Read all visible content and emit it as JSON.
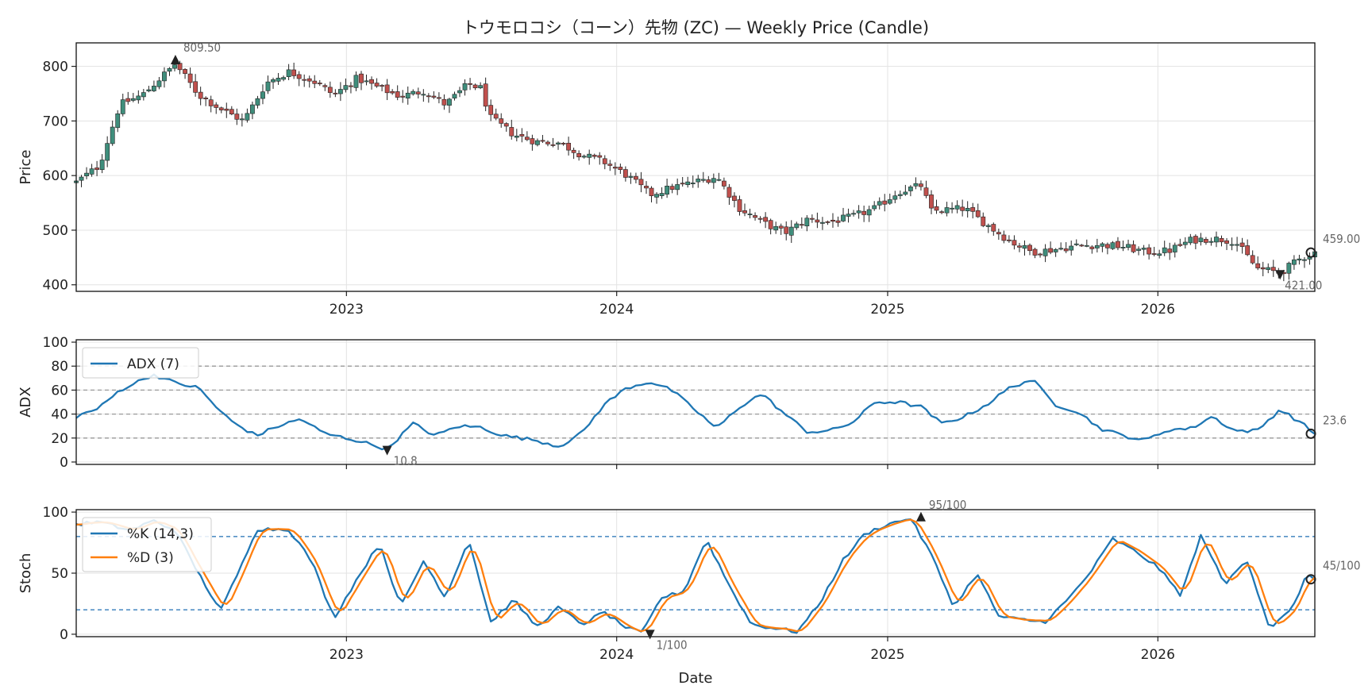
{
  "chart_data": {
    "title": "トウモロコシ（コーン）先物 (ZC) — Weekly Price (Candle)",
    "xlabel": "Date",
    "x_ticks": [
      "2023",
      "2024",
      "2025",
      "2026"
    ],
    "colors": {
      "up": "#3f8e7c",
      "down": "#c0504d",
      "wick": "#222222",
      "adx": "#1f77b4",
      "k": "#1f77b4",
      "d": "#ff7f0e",
      "ref": "#999999",
      "stoch_ref": "#1f6fb4",
      "grid": "#e3e3e3"
    },
    "panels": [
      {
        "id": "price",
        "type": "candlestick",
        "ylabel": "Price",
        "ylim": [
          388,
          843
        ],
        "yticks": [
          400,
          500,
          600,
          700,
          800
        ],
        "annotations": [
          {
            "label": "809.50",
            "x": "2022-05",
            "y": 809.5,
            "marker": "up"
          },
          {
            "label": "421.00",
            "x": "2026-06",
            "y": 421,
            "marker": "down"
          },
          {
            "label": "459.00",
            "x": "2026-08",
            "y": 459,
            "marker": "last"
          }
        ],
        "close_anchors": [
          [
            "2022-01-01",
            588
          ],
          [
            "2022-02-01",
            618
          ],
          [
            "2022-03-01",
            730
          ],
          [
            "2022-04-01",
            748
          ],
          [
            "2022-05-15",
            805
          ],
          [
            "2022-06-15",
            748
          ],
          [
            "2022-07-15",
            722
          ],
          [
            "2022-08-15",
            700
          ],
          [
            "2022-09-15",
            770
          ],
          [
            "2022-10-15",
            790
          ],
          [
            "2022-11-15",
            775
          ],
          [
            "2022-12-15",
            748
          ],
          [
            "2023-01-15",
            778
          ],
          [
            "2023-02-15",
            760
          ],
          [
            "2023-03-15",
            745
          ],
          [
            "2023-04-15",
            755
          ],
          [
            "2023-05-15",
            730
          ],
          [
            "2023-06-15",
            768
          ],
          [
            "2023-07-01",
            760
          ],
          [
            "2023-07-15",
            705
          ],
          [
            "2023-08-15",
            675
          ],
          [
            "2023-09-15",
            662
          ],
          [
            "2023-10-15",
            660
          ],
          [
            "2023-11-15",
            638
          ],
          [
            "2023-12-15",
            625
          ],
          [
            "2024-01-15",
            600
          ],
          [
            "2024-02-15",
            565
          ],
          [
            "2024-03-15",
            578
          ],
          [
            "2024-04-15",
            588
          ],
          [
            "2024-05-15",
            598
          ],
          [
            "2024-06-15",
            540
          ],
          [
            "2024-07-15",
            515
          ],
          [
            "2024-08-15",
            495
          ],
          [
            "2024-09-15",
            520
          ],
          [
            "2024-10-15",
            515
          ],
          [
            "2024-11-15",
            525
          ],
          [
            "2024-12-15",
            540
          ],
          [
            "2025-01-15",
            570
          ],
          [
            "2025-02-15",
            582
          ],
          [
            "2025-03-01",
            535
          ],
          [
            "2025-04-15",
            540
          ],
          [
            "2025-05-15",
            510
          ],
          [
            "2025-06-15",
            480
          ],
          [
            "2025-07-15",
            460
          ],
          [
            "2025-08-15",
            465
          ],
          [
            "2025-09-15",
            472
          ],
          [
            "2025-10-15",
            473
          ],
          [
            "2025-11-15",
            470
          ],
          [
            "2025-12-15",
            460
          ],
          [
            "2026-01-15",
            462
          ],
          [
            "2026-02-15",
            482
          ],
          [
            "2026-03-15",
            485
          ],
          [
            "2026-04-15",
            480
          ],
          [
            "2026-05-15",
            430
          ],
          [
            "2026-06-15",
            422
          ],
          [
            "2026-07-15",
            450
          ],
          [
            "2026-08-01",
            459
          ]
        ]
      },
      {
        "id": "adx",
        "type": "line",
        "ylabel": "ADX",
        "ylim": [
          -2,
          102
        ],
        "yticks": [
          0,
          20,
          40,
          60,
          80,
          100
        ],
        "ref_lines": [
          20,
          40,
          60,
          80
        ],
        "series": [
          {
            "name": "ADX (7)",
            "color": "#1f77b4"
          }
        ],
        "annotations": [
          {
            "label": "10.8",
            "x": "2023-02-25",
            "y": 10.8,
            "marker": "down"
          },
          {
            "label": "23.6",
            "x": "2026-08",
            "y": 23.6,
            "marker": "last"
          }
        ],
        "anchors": [
          [
            "2022-01-01",
            38
          ],
          [
            "2022-02-01",
            45
          ],
          [
            "2022-03-01",
            60
          ],
          [
            "2022-04-15",
            73
          ],
          [
            "2022-05-15",
            66
          ],
          [
            "2022-06-15",
            62
          ],
          [
            "2022-07-15",
            42
          ],
          [
            "2022-08-01",
            33
          ],
          [
            "2022-09-01",
            22
          ],
          [
            "2022-10-01",
            30
          ],
          [
            "2022-11-01",
            36
          ],
          [
            "2022-12-01",
            24
          ],
          [
            "2023-01-15",
            18
          ],
          [
            "2023-02-25",
            10.8
          ],
          [
            "2023-04-01",
            32
          ],
          [
            "2023-05-01",
            22
          ],
          [
            "2023-06-01",
            30
          ],
          [
            "2023-07-01",
            29
          ],
          [
            "2023-08-01",
            22
          ],
          [
            "2023-09-15",
            18
          ],
          [
            "2023-10-15",
            13
          ],
          [
            "2023-11-15",
            24
          ],
          [
            "2023-12-15",
            48
          ],
          [
            "2024-01-15",
            62
          ],
          [
            "2024-02-15",
            67
          ],
          [
            "2024-03-15",
            60
          ],
          [
            "2024-04-15",
            44
          ],
          [
            "2024-05-15",
            28
          ],
          [
            "2024-06-15",
            46
          ],
          [
            "2024-07-15",
            57
          ],
          [
            "2024-08-15",
            40
          ],
          [
            "2024-09-15",
            25
          ],
          [
            "2024-10-15",
            26
          ],
          [
            "2024-11-15",
            33
          ],
          [
            "2024-12-15",
            50
          ],
          [
            "2025-01-15",
            50
          ],
          [
            "2025-02-15",
            46
          ],
          [
            "2025-03-15",
            32
          ],
          [
            "2025-04-15",
            38
          ],
          [
            "2025-05-15",
            48
          ],
          [
            "2025-06-15",
            62
          ],
          [
            "2025-07-15",
            69
          ],
          [
            "2025-08-15",
            48
          ],
          [
            "2025-09-15",
            42
          ],
          [
            "2025-10-15",
            28
          ],
          [
            "2025-11-15",
            22
          ],
          [
            "2025-12-15",
            18
          ],
          [
            "2026-01-15",
            27
          ],
          [
            "2026-02-15",
            28
          ],
          [
            "2026-03-15",
            38
          ],
          [
            "2026-04-15",
            26
          ],
          [
            "2026-05-15",
            26
          ],
          [
            "2026-06-15",
            44
          ],
          [
            "2026-07-15",
            32
          ],
          [
            "2026-08-01",
            23.6
          ]
        ]
      },
      {
        "id": "stoch",
        "type": "line",
        "ylabel": "Stoch",
        "ylim": [
          -2,
          102
        ],
        "yticks": [
          0,
          50,
          100
        ],
        "ref_lines": [
          20,
          80
        ],
        "series": [
          {
            "name": "%K (14,3)",
            "color": "#1f77b4"
          },
          {
            "name": "%D (3)",
            "color": "#ff7f0e"
          }
        ],
        "annotations": [
          {
            "label": "95/100",
            "x": "2025-02",
            "y": 95,
            "marker": "up"
          },
          {
            "label": "1/100",
            "x": "2024-02",
            "y": 1,
            "marker": "down"
          },
          {
            "label": "45/100",
            "x": "2026-08",
            "y": 45,
            "marker": "last"
          }
        ],
        "anchors": [
          [
            "2022-01-01",
            90
          ],
          [
            "2022-02-01",
            92
          ],
          [
            "2022-03-15",
            85
          ],
          [
            "2022-04-15",
            93
          ],
          [
            "2022-05-15",
            85
          ],
          [
            "2022-06-15",
            50
          ],
          [
            "2022-07-15",
            19
          ],
          [
            "2022-08-15",
            60
          ],
          [
            "2022-09-01",
            86
          ],
          [
            "2022-10-15",
            86
          ],
          [
            "2022-11-15",
            60
          ],
          [
            "2022-12-15",
            13
          ],
          [
            "2023-01-15",
            45
          ],
          [
            "2023-02-15",
            75
          ],
          [
            "2023-03-15",
            22
          ],
          [
            "2023-04-15",
            60
          ],
          [
            "2023-05-15",
            30
          ],
          [
            "2023-06-15",
            78
          ],
          [
            "2023-07-15",
            10
          ],
          [
            "2023-08-15",
            28
          ],
          [
            "2023-09-15",
            6
          ],
          [
            "2023-10-15",
            22
          ],
          [
            "2023-11-15",
            8
          ],
          [
            "2023-12-15",
            18
          ],
          [
            "2024-01-15",
            5
          ],
          [
            "2024-02-05",
            1
          ],
          [
            "2024-03-01",
            30
          ],
          [
            "2024-04-01",
            35
          ],
          [
            "2024-05-01",
            78
          ],
          [
            "2024-06-01",
            40
          ],
          [
            "2024-07-01",
            8
          ],
          [
            "2024-08-01",
            5
          ],
          [
            "2024-09-01",
            2
          ],
          [
            "2024-10-01",
            25
          ],
          [
            "2024-11-01",
            60
          ],
          [
            "2024-12-01",
            82
          ],
          [
            "2025-01-01",
            90
          ],
          [
            "2025-02-01",
            95
          ],
          [
            "2025-03-01",
            65
          ],
          [
            "2025-04-01",
            22
          ],
          [
            "2025-05-01",
            50
          ],
          [
            "2025-06-01",
            14
          ],
          [
            "2025-07-01",
            12
          ],
          [
            "2025-08-01",
            10
          ],
          [
            "2025-09-01",
            28
          ],
          [
            "2025-10-01",
            50
          ],
          [
            "2025-11-01",
            78
          ],
          [
            "2025-12-01",
            68
          ],
          [
            "2026-01-01",
            55
          ],
          [
            "2026-02-01",
            32
          ],
          [
            "2026-03-01",
            82
          ],
          [
            "2026-04-01",
            40
          ],
          [
            "2026-05-01",
            62
          ],
          [
            "2026-06-01",
            5
          ],
          [
            "2026-07-01",
            20
          ],
          [
            "2026-07-20",
            48
          ],
          [
            "2026-08-01",
            45
          ]
        ]
      }
    ]
  }
}
